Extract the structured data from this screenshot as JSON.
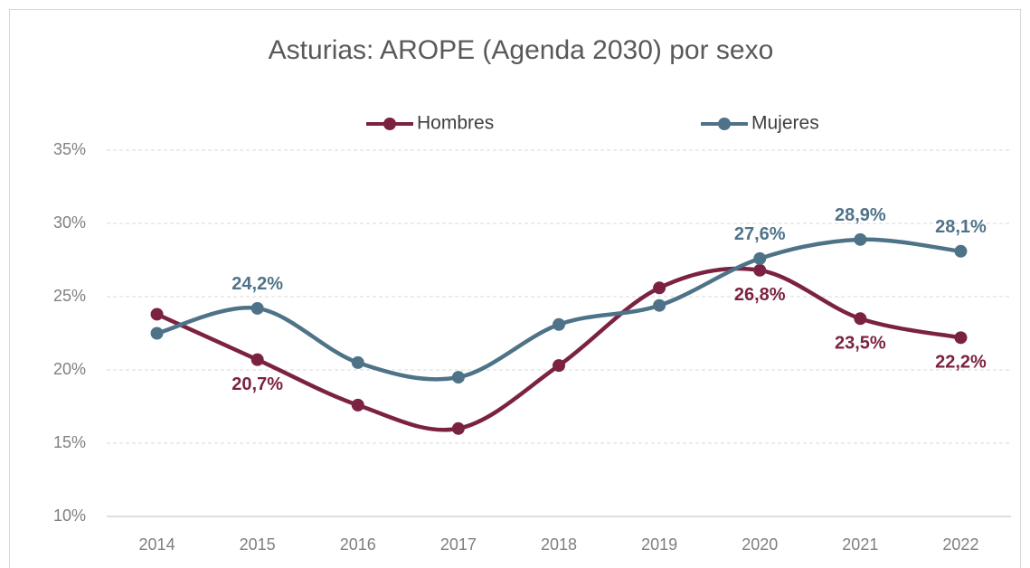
{
  "chart_data": {
    "type": "line",
    "title": "Asturias: AROPE (Agenda 2030) por sexo",
    "categories": [
      "2014",
      "2015",
      "2016",
      "2017",
      "2018",
      "2019",
      "2020",
      "2021",
      "2022"
    ],
    "series": [
      {
        "name": "Hombres",
        "color": "#7b2242",
        "values": [
          23.8,
          20.7,
          17.6,
          16.0,
          20.3,
          25.6,
          26.8,
          23.5,
          22.2
        ],
        "value_labels": [
          null,
          "20,7%",
          null,
          null,
          null,
          null,
          "26,8%",
          "23,5%",
          "22,2%"
        ]
      },
      {
        "name": "Mujeres",
        "color": "#4e7389",
        "values": [
          22.5,
          24.2,
          20.5,
          19.5,
          23.1,
          24.4,
          27.6,
          28.9,
          28.1
        ],
        "value_labels": [
          null,
          "24,2%",
          null,
          null,
          null,
          null,
          "27,6%",
          "28,9%",
          "28,1%"
        ]
      }
    ],
    "ylim": [
      10,
      35
    ],
    "yticks": [
      {
        "value": 10,
        "label": "10%"
      },
      {
        "value": 15,
        "label": "15%"
      },
      {
        "value": 20,
        "label": "20%"
      },
      {
        "value": 25,
        "label": "25%"
      },
      {
        "value": 30,
        "label": "30%"
      },
      {
        "value": 35,
        "label": "35%"
      }
    ],
    "grid": true,
    "legend": "top"
  }
}
